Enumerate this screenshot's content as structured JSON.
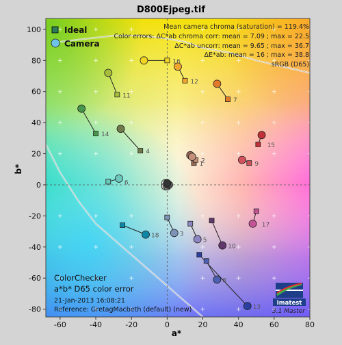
{
  "chart_data": {
    "type": "scatter",
    "title": "D800Ejpeg.tif",
    "xlabel": "a*",
    "ylabel": "b*",
    "xlim": [
      -68,
      80
    ],
    "ylim": [
      -85,
      107
    ],
    "xticks": [
      -60,
      -40,
      -20,
      0,
      20,
      40,
      60,
      80
    ],
    "yticks": [
      -80,
      -60,
      -40,
      -20,
      0,
      20,
      40,
      60,
      80,
      100
    ],
    "grid": false,
    "legend_position": "top-left",
    "legend": [
      {
        "name": "Ideal",
        "marker": "square"
      },
      {
        "name": "Camera",
        "marker": "circle"
      }
    ],
    "stats": {
      "line1": "Mean camera chroma (saturation) = 119.4%",
      "line2": "Color errors: ΔC*ab chroma corr:  mean = 7.09 ;  max = 22.5",
      "line3": "ΔC*ab uncorr:  mean = 9.65 ;  max = 36.7",
      "line4": "ΔE*ab:  mean = 16 ;  max = 38.8",
      "line5": "sRGB (D65)"
    },
    "info": {
      "line1": "ColorChecker",
      "line2": "a*b* D65 color error",
      "line3": "21-Jan-2013 16:08:21",
      "line4": "Reference: GretagMacbeth (default) (new)"
    },
    "branding": {
      "logo": "Imatest",
      "version": "3.1  Master"
    },
    "patches": [
      {
        "id": "1",
        "ideal": [
          15,
          14
        ],
        "camera": [
          13,
          19
        ],
        "color": "#9a6a55"
      },
      {
        "id": "2",
        "ideal": [
          16,
          16
        ],
        "camera": [
          14,
          18
        ],
        "color": "#c4907a"
      },
      {
        "id": "3",
        "ideal": [
          0,
          -21
        ],
        "camera": [
          4,
          -31
        ],
        "color": "#7e93b8"
      },
      {
        "id": "4",
        "ideal": [
          -15,
          22
        ],
        "camera": [
          -26,
          36
        ],
        "color": "#6f7a48"
      },
      {
        "id": "5",
        "ideal": [
          13,
          -25
        ],
        "camera": [
          17,
          -35
        ],
        "color": "#8e86c2"
      },
      {
        "id": "6",
        "ideal": [
          -33,
          2
        ],
        "camera": [
          -27,
          4
        ],
        "color": "#6cc7bd"
      },
      {
        "id": "7",
        "ideal": [
          34,
          55
        ],
        "camera": [
          28,
          65
        ],
        "color": "#e37a2a"
      },
      {
        "id": "8",
        "ideal": [
          22,
          -49
        ],
        "camera": [
          28,
          -61
        ],
        "color": "#4d5fb0"
      },
      {
        "id": "9",
        "ideal": [
          46,
          14
        ],
        "camera": [
          42,
          16
        ],
        "color": "#d4525e"
      },
      {
        "id": "10",
        "ideal": [
          25,
          -23
        ],
        "camera": [
          31,
          -39
        ],
        "color": "#60386c"
      },
      {
        "id": "11",
        "ideal": [
          -28,
          58
        ],
        "camera": [
          -33,
          72
        ],
        "color": "#a6bd3c"
      },
      {
        "id": "12",
        "ideal": [
          10,
          67
        ],
        "camera": [
          6,
          76
        ],
        "color": "#f0a52e"
      },
      {
        "id": "13",
        "ideal": [
          18,
          -45
        ],
        "camera": [
          45,
          -78
        ],
        "color": "#2b3fa0"
      },
      {
        "id": "14",
        "ideal": [
          -40,
          33
        ],
        "camera": [
          -48,
          49
        ],
        "color": "#48964a"
      },
      {
        "id": "15",
        "ideal": [
          51,
          26
        ],
        "camera": [
          53,
          32
        ],
        "color": "#c2303a"
      },
      {
        "id": "16",
        "ideal": [
          0,
          80
        ],
        "camera": [
          -13,
          80
        ],
        "color": "#f2d523"
      },
      {
        "id": "17",
        "ideal": [
          50,
          -17
        ],
        "camera": [
          48,
          -25
        ],
        "color": "#c25395"
      },
      {
        "id": "18",
        "ideal": [
          -25,
          -26
        ],
        "camera": [
          -12,
          -32
        ],
        "color": "#0e87a6"
      },
      {
        "id": "19",
        "ideal": [
          0,
          0
        ],
        "camera": [
          -1,
          1
        ],
        "color": "#f2f2f2"
      },
      {
        "id": "20",
        "ideal": [
          0,
          0
        ],
        "camera": [
          -1,
          -1
        ],
        "color": "#c8c8c8"
      },
      {
        "id": "21",
        "ideal": [
          0,
          0
        ],
        "camera": [
          0,
          0
        ],
        "color": "#a0a0a0"
      },
      {
        "id": "22",
        "ideal": [
          0,
          0
        ],
        "camera": [
          0,
          -1
        ],
        "color": "#7a7a7a"
      },
      {
        "id": "23",
        "ideal": [
          0,
          0
        ],
        "camera": [
          1,
          0
        ],
        "color": "#555555"
      },
      {
        "id": "24",
        "ideal": [
          0,
          0
        ],
        "camera": [
          0,
          1
        ],
        "color": "#333333"
      }
    ],
    "gamut_boundary": {
      "srgb_upper": [
        [
          -60,
          92
        ],
        [
          -30,
          96
        ],
        [
          -15,
          96
        ],
        [
          0,
          94
        ],
        [
          10,
          92
        ],
        [
          20,
          88
        ],
        [
          35,
          85
        ],
        [
          50,
          80
        ],
        [
          65,
          76
        ],
        [
          80,
          72
        ]
      ],
      "srgb_left": [
        [
          -68,
          26
        ],
        [
          -60,
          8
        ],
        [
          -50,
          -10
        ],
        [
          -40,
          -25
        ],
        [
          -30,
          -35
        ],
        [
          -20,
          -45
        ],
        [
          -10,
          -55
        ],
        [
          0,
          -65
        ],
        [
          10,
          -75
        ],
        [
          20,
          -85
        ]
      ]
    }
  }
}
